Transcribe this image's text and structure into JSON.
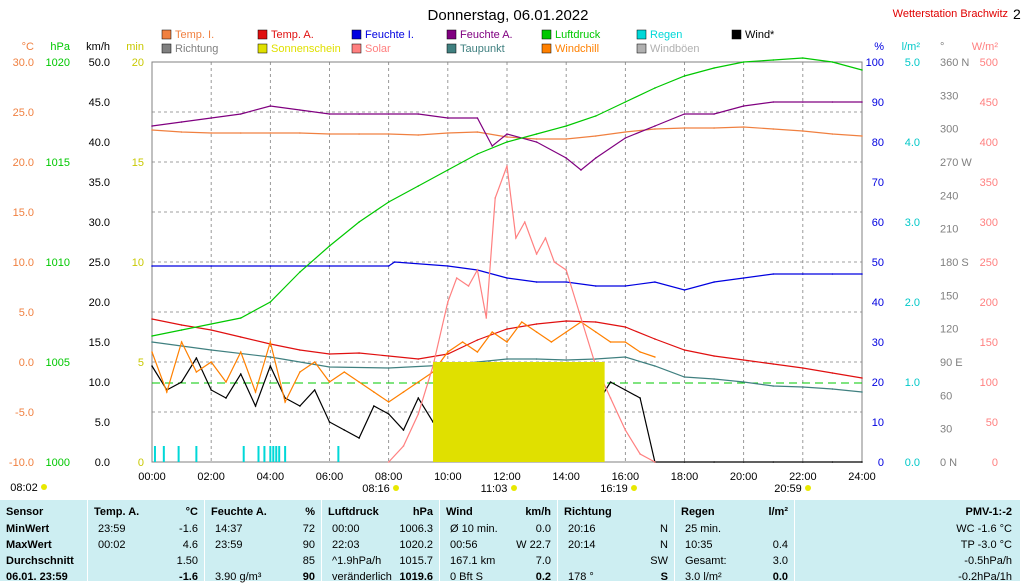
{
  "title": "Donnerstag, 06.01.2022",
  "station": "Wetterstation Brachwitz",
  "corner_mark": "2",
  "legend": [
    {
      "label": "Temp. I.",
      "color": "#f08040"
    },
    {
      "label": "Temp. A.",
      "color": "#e01010"
    },
    {
      "label": "Feuchte I.",
      "color": "#0000e0"
    },
    {
      "label": "Feuchte A.",
      "color": "#800080"
    },
    {
      "label": "Luftdruck",
      "color": "#00c800"
    },
    {
      "label": "Regen",
      "color": "#00d8d8"
    },
    {
      "label": "Wind*",
      "color": "#000000"
    },
    {
      "label": "Richtung",
      "color": "#808080"
    },
    {
      "label": "Sonnenschein",
      "color": "#e0e000"
    },
    {
      "label": "Solar",
      "color": "#ff8080"
    },
    {
      "label": "Taupunkt",
      "color": "#408080"
    },
    {
      "label": "Windchill",
      "color": "#ff8000"
    },
    {
      "label": "Windböen",
      "color": "#b0b0b0"
    }
  ],
  "axes": {
    "temp": {
      "unit": "°C",
      "ticks": [
        "30.0",
        "25.0",
        "20.0",
        "15.0",
        "10.0",
        "5.0",
        "0.0",
        "-5.0",
        "-10.0"
      ],
      "color": "#f08040"
    },
    "pressure": {
      "unit": "hPa",
      "ticks": [
        "1020",
        "1015",
        "1010",
        "1005",
        "1000"
      ],
      "color": "#00c800"
    },
    "wind": {
      "unit": "km/h",
      "ticks": [
        "50.0",
        "45.0",
        "40.0",
        "35.0",
        "30.0",
        "25.0",
        "20.0",
        "15.0",
        "10.0",
        "5.0",
        "0.0"
      ],
      "color": "#000000"
    },
    "sun": {
      "unit": "min",
      "ticks": [
        "20",
        "15",
        "10",
        "5",
        "0"
      ],
      "color": "#c8c800"
    },
    "humidity": {
      "unit": "%",
      "ticks": [
        "100",
        "90",
        "80",
        "70",
        "60",
        "50",
        "40",
        "30",
        "20",
        "10",
        "0"
      ],
      "color": "#0000e0"
    },
    "rain": {
      "unit": "l/m²",
      "ticks": [
        "5.0",
        "4.0",
        "3.0",
        "2.0",
        "1.0",
        "0.0"
      ],
      "color": "#00c8c8"
    },
    "direction": {
      "unit": "°",
      "ticks": [
        "360 N",
        "330",
        "300",
        "270 W",
        "240",
        "210",
        "180 S",
        "150",
        "120",
        "90 E",
        "60",
        "30",
        "0   N"
      ],
      "color": "#808080"
    },
    "solar": {
      "unit": "W/m²",
      "ticks": [
        "500",
        "450",
        "400",
        "350",
        "300",
        "250",
        "200",
        "150",
        "100",
        "50",
        "0"
      ],
      "color": "#ff8080"
    },
    "time_ticks": [
      "00:00",
      "02:00",
      "04:00",
      "06:00",
      "08:00",
      "10:00",
      "12:00",
      "14:00",
      "16:00",
      "18:00",
      "20:00",
      "22:00",
      "24:00"
    ]
  },
  "sun_events": {
    "dawn": "08:02",
    "sunrise": "08:16",
    "noon": "11:03",
    "sunset": "16:19",
    "moonset": "20:59"
  },
  "table": {
    "sensor": {
      "header": "Sensor",
      "rows": [
        "MinWert",
        "MaxWert",
        "Durchschnitt",
        "06.01. 23:59"
      ]
    },
    "temp": {
      "header": "Temp. A.",
      "unit": "°C",
      "rows": [
        [
          "23:59",
          "-1.6"
        ],
        [
          "00:02",
          "4.6"
        ],
        [
          "",
          "1.50"
        ],
        [
          "",
          "-1.6"
        ]
      ]
    },
    "humidity": {
      "header": "Feuchte A.",
      "unit": "%",
      "rows": [
        [
          "14:37",
          "72"
        ],
        [
          "23:59",
          "90"
        ],
        [
          "",
          "85"
        ],
        [
          "3.90 g/m³",
          "90"
        ]
      ]
    },
    "pressure": {
      "header": "Luftdruck",
      "unit": "hPa",
      "rows": [
        [
          "00:00",
          "1006.3"
        ],
        [
          "22:03",
          "1020.2"
        ],
        [
          "^1.9hPa/h",
          "1015.7"
        ],
        [
          "veränderlich",
          "1019.6"
        ]
      ]
    },
    "wind": {
      "header": "Wind",
      "unit": "km/h",
      "rows": [
        [
          "Ø 10 min.",
          "0.0"
        ],
        [
          "00:56",
          "W 22.7"
        ],
        [
          "167.1 km",
          "7.0"
        ],
        [
          "0 Bft S",
          "0.2"
        ]
      ]
    },
    "direction": {
      "header": "Richtung",
      "rows": [
        [
          "20:16",
          "N"
        ],
        [
          "20:14",
          "N"
        ],
        [
          "",
          "SW"
        ],
        [
          "178 °",
          "S"
        ]
      ]
    },
    "rain": {
      "header": "Regen",
      "unit": "l/m²",
      "rows": [
        [
          "25 min.",
          ""
        ],
        [
          "10:35",
          "0.4"
        ],
        [
          "Gesamt:",
          "3.0"
        ],
        [
          "3.0 l/m²",
          "0.0"
        ]
      ]
    },
    "pmv": {
      "header": "PMV-1:-2",
      "rows": [
        "WC -1.6 °C",
        "TP -3.0 °C",
        "-0.5hPa/h",
        "-0.2hPa/1h"
      ]
    }
  },
  "chart_data": {
    "type": "line",
    "title": "Donnerstag, 06.01.2022",
    "x_unit": "hours",
    "xlim": [
      0,
      24
    ],
    "series": [
      {
        "name": "Temp. I.",
        "axis": "temp",
        "color": "#f08040",
        "x": [
          0,
          1,
          2,
          3,
          4,
          5,
          6,
          7,
          8,
          9,
          10,
          11,
          12,
          13,
          14,
          15,
          16,
          17,
          18,
          19,
          20,
          21,
          22,
          23,
          24
        ],
        "y": [
          23.2,
          23.0,
          22.9,
          22.9,
          22.9,
          22.9,
          22.8,
          22.8,
          22.8,
          22.7,
          22.9,
          23.0,
          22.5,
          22.3,
          22.3,
          22.6,
          23.0,
          23.3,
          23.4,
          23.4,
          23.5,
          23.3,
          23.1,
          22.8,
          22.6
        ]
      },
      {
        "name": "Temp. A.",
        "axis": "temp",
        "color": "#e01010",
        "x": [
          0,
          1,
          2,
          3,
          4,
          5,
          6,
          7,
          8,
          9,
          10,
          11,
          12,
          13,
          14,
          15,
          16,
          17,
          18,
          19,
          20,
          21,
          22,
          23,
          24
        ],
        "y": [
          4.3,
          3.7,
          3.2,
          2.5,
          1.8,
          1.2,
          0.8,
          0.9,
          0.6,
          0.3,
          0.8,
          2.2,
          3.3,
          3.8,
          4.1,
          4.0,
          3.5,
          2.3,
          1.2,
          0.6,
          0.2,
          -0.2,
          -0.6,
          -1.1,
          -1.6
        ]
      },
      {
        "name": "Feuchte I.",
        "axis": "humidity",
        "color": "#0000e0",
        "x": [
          0,
          2,
          4,
          6,
          8,
          8.2,
          10,
          11,
          12,
          13,
          14,
          15,
          16,
          17,
          18,
          19,
          20,
          21,
          22,
          23,
          24
        ],
        "y": [
          49,
          49,
          49,
          49,
          49,
          50,
          49,
          48,
          46,
          45,
          45,
          44,
          44,
          45,
          43,
          45,
          46,
          47,
          47,
          47,
          47
        ]
      },
      {
        "name": "Feuchte A.",
        "axis": "humidity",
        "color": "#800080",
        "x": [
          0,
          1,
          2,
          3,
          4,
          5,
          6,
          7,
          8,
          9,
          10,
          11,
          11.5,
          12,
          13,
          14,
          14.5,
          15,
          16,
          17,
          18,
          19,
          20,
          21,
          22,
          23,
          24
        ],
        "y": [
          84,
          85,
          86,
          87,
          89,
          88,
          87,
          87,
          87,
          87,
          86,
          86,
          79,
          82,
          80,
          76,
          73,
          76,
          81,
          84,
          87,
          87,
          89,
          90,
          90,
          90,
          90
        ]
      },
      {
        "name": "Luftdruck",
        "axis": "pressure",
        "color": "#00c800",
        "x": [
          0,
          1,
          2,
          3,
          4,
          5,
          6,
          7,
          8,
          9,
          10,
          11,
          12,
          13,
          14,
          15,
          16,
          17,
          18,
          19,
          20,
          21,
          22,
          23,
          24
        ],
        "y": [
          1006.3,
          1006.6,
          1006.9,
          1007.2,
          1008.0,
          1009.5,
          1010.8,
          1012.0,
          1013.0,
          1013.8,
          1014.6,
          1015.4,
          1016.0,
          1016.4,
          1016.8,
          1017.3,
          1018.0,
          1018.7,
          1019.3,
          1019.7,
          1020.0,
          1020.1,
          1020.2,
          1020.0,
          1019.6
        ]
      },
      {
        "name": "Taupunkt",
        "axis": "temp",
        "color": "#408080",
        "x": [
          0,
          2,
          4,
          6,
          8,
          10,
          11,
          12,
          13,
          14,
          15,
          16,
          17,
          18,
          19,
          20,
          21,
          22,
          23,
          24
        ],
        "y": [
          2.0,
          1.2,
          0.5,
          -0.5,
          -0.6,
          -0.3,
          0.0,
          0.3,
          0.3,
          0.2,
          0.3,
          0.5,
          -0.4,
          -1.5,
          -1.7,
          -2.0,
          -2.4,
          -2.5,
          -2.7,
          -3.0
        ]
      },
      {
        "name": "Wind*",
        "axis": "wind",
        "color": "#000000",
        "x": [
          0,
          0.5,
          1,
          1.5,
          2,
          2.5,
          3,
          3.5,
          4,
          4.5,
          5,
          5.5,
          6,
          6.5,
          7,
          7.5,
          8,
          8.5,
          9,
          9.5,
          10,
          10.5,
          11,
          11.5,
          12,
          12.5,
          13,
          13.5,
          14,
          14.5,
          15,
          15.5,
          16,
          16.5,
          17,
          18,
          19,
          20,
          21,
          22,
          23,
          24
        ],
        "y": [
          12,
          9,
          10,
          13,
          9,
          8,
          11,
          7,
          12,
          8,
          7,
          9,
          5,
          4,
          3,
          7,
          6,
          4,
          8,
          5,
          9,
          7,
          10,
          8,
          12,
          9,
          10,
          8,
          9,
          11,
          7,
          10,
          9,
          8,
          0,
          0,
          0,
          0,
          0,
          0,
          0,
          0
        ]
      },
      {
        "name": "Windchill",
        "axis": "temp",
        "color": "#ff8000",
        "x": [
          0,
          0.5,
          1,
          1.5,
          2,
          2.5,
          3,
          3.5,
          4,
          4.5,
          5,
          5.5,
          6,
          6.5,
          7,
          7.5,
          8,
          8.5,
          9,
          9.5,
          10,
          10.5,
          11,
          11.5,
          12,
          12.5,
          13,
          13.5,
          14,
          14.5,
          15,
          15.5,
          16,
          16.5,
          17
        ],
        "y": [
          1,
          -3,
          2,
          -1,
          0,
          -2,
          1,
          -3,
          2,
          -4,
          -1,
          0,
          -2,
          -1,
          -2,
          -3,
          -4,
          -3,
          -2,
          -1,
          1,
          2,
          1,
          3,
          2,
          4,
          3,
          2,
          3,
          4,
          3,
          2,
          2,
          1,
          0.5
        ]
      },
      {
        "name": "Solar",
        "axis": "solar",
        "color": "#ff8080",
        "x": [
          8,
          8.5,
          9,
          9.5,
          10,
          10.3,
          10.7,
          11,
          11.3,
          11.6,
          12,
          12.3,
          12.6,
          13,
          13.3,
          13.6,
          14,
          14.5,
          15,
          15.5,
          16,
          16.5,
          17
        ],
        "y": [
          0,
          20,
          60,
          120,
          200,
          230,
          220,
          240,
          180,
          330,
          370,
          280,
          300,
          260,
          280,
          250,
          240,
          180,
          120,
          80,
          40,
          10,
          0
        ]
      },
      {
        "name": "Regen",
        "axis": "rain",
        "color": "#00d8d8",
        "type": "bar",
        "x": [
          0.1,
          0.4,
          0.9,
          1.5,
          3.1,
          3.6,
          3.8,
          4.0,
          4.1,
          4.2,
          4.3,
          4.5,
          6.3
        ],
        "y": [
          0.2,
          0.2,
          0.2,
          0.2,
          0.2,
          0.2,
          0.2,
          0.2,
          0.2,
          0.2,
          0.2,
          0.2,
          0.2
        ]
      },
      {
        "name": "Sonnenschein",
        "axis": "sun",
        "color": "#e0e000",
        "type": "area",
        "x": [
          9.5,
          15.3
        ],
        "y": [
          5,
          5
        ]
      }
    ]
  }
}
